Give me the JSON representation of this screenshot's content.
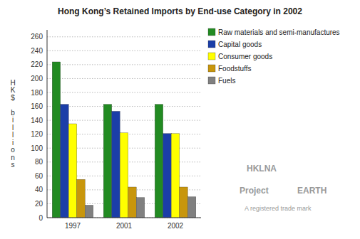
{
  "chart_data": {
    "type": "bar",
    "title": "Hong Kong’s Retained Imports by End-use Category in 2002",
    "y_label": "HK$ billions",
    "categories": [
      "1997",
      "2001",
      "2002"
    ],
    "series": [
      {
        "name": "Raw materials and semi-manufactures",
        "color": "#228B22",
        "values": [
          224,
          163,
          163
        ]
      },
      {
        "name": "Capital goods",
        "color": "#1B3EA8",
        "values": [
          163,
          153,
          121
        ]
      },
      {
        "name": "Consumer goods",
        "color": "#FFFF00",
        "values": [
          135,
          122,
          121
        ]
      },
      {
        "name": "Foodstuffs",
        "color": "#C8960C",
        "values": [
          55,
          44,
          44
        ]
      },
      {
        "name": "Fuels",
        "color": "#808080",
        "values": [
          18,
          29,
          30
        ]
      }
    ],
    "ylim": [
      0,
      270
    ],
    "yticks": [
      0,
      20,
      40,
      60,
      80,
      100,
      120,
      140,
      160,
      180,
      200,
      220,
      240,
      260
    ],
    "grid": true,
    "legend": "right",
    "annotations": [
      "HKLNA",
      "Project",
      "EARTH",
      "A registered trade mark"
    ]
  }
}
